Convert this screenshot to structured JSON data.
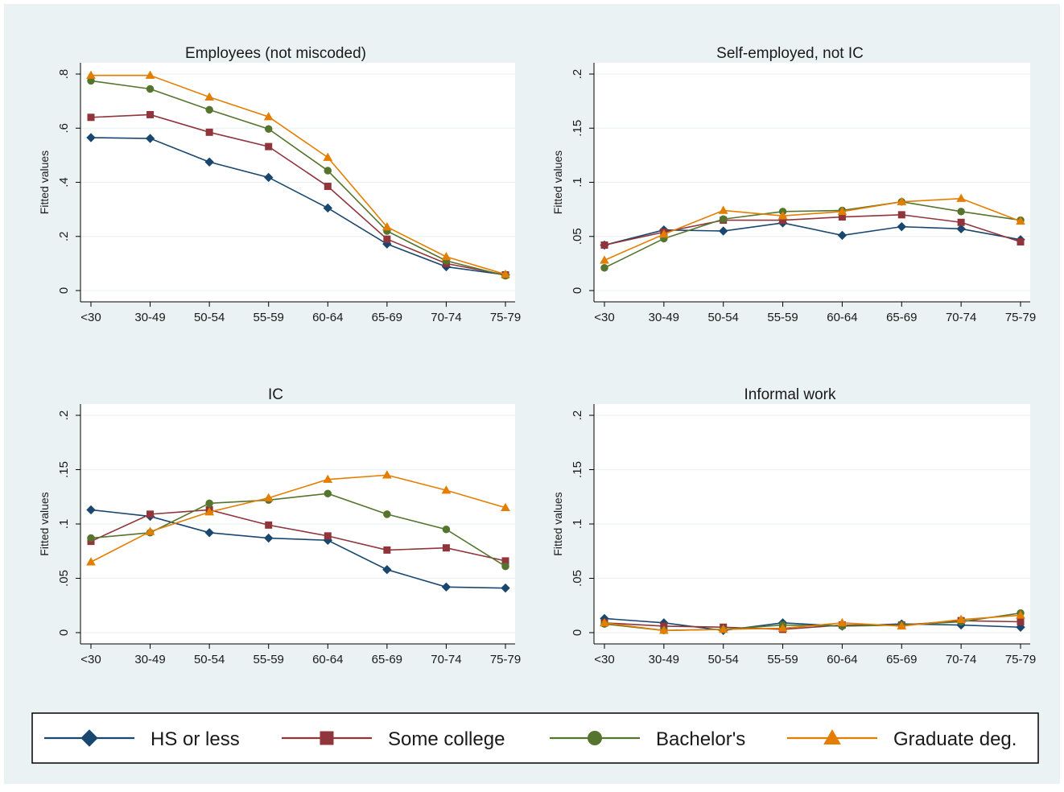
{
  "chart_data": [
    {
      "type": "line",
      "title": "Employees (not miscoded)",
      "ylabel": "Fitted values",
      "categories": [
        "<30",
        "30-49",
        "50-54",
        "55-59",
        "60-64",
        "65-69",
        "70-74",
        "75-79"
      ],
      "ylim": [
        0,
        0.8
      ],
      "yticks": [
        0,
        {
          "value": 0.2,
          "label": ".2"
        },
        {
          "value": 0.4,
          "label": ".4"
        },
        {
          "value": 0.6,
          "label": ".6"
        },
        {
          "value": 0.8,
          "label": ".8"
        }
      ],
      "grid": true,
      "series": [
        {
          "name": "HS or less",
          "color": "#1a476f",
          "marker": "diamond",
          "values": [
            0.565,
            0.562,
            0.475,
            0.418,
            0.305,
            0.172,
            0.088,
            0.058
          ]
        },
        {
          "name": "Some college",
          "color": "#90353b",
          "marker": "square",
          "values": [
            0.64,
            0.65,
            0.585,
            0.532,
            0.385,
            0.19,
            0.1,
            0.058
          ]
        },
        {
          "name": "Bachelor's",
          "color": "#55752f",
          "marker": "circle",
          "values": [
            0.775,
            0.745,
            0.668,
            0.597,
            0.443,
            0.22,
            0.11,
            0.055
          ]
        },
        {
          "name": "Graduate deg.",
          "color": "#e37e00",
          "marker": "triangle",
          "values": [
            0.795,
            0.795,
            0.715,
            0.642,
            0.492,
            0.235,
            0.125,
            0.06
          ]
        }
      ]
    },
    {
      "type": "line",
      "title": "Self-employed, not IC",
      "ylabel": "Fitted values",
      "categories": [
        "<30",
        "30-49",
        "50-54",
        "55-59",
        "60-64",
        "65-69",
        "70-74",
        "75-79"
      ],
      "ylim": [
        0,
        0.2
      ],
      "yticks": [
        0,
        {
          "value": 0.05,
          "label": ".05"
        },
        {
          "value": 0.1,
          "label": ".1"
        },
        {
          "value": 0.15,
          "label": ".15"
        },
        {
          "value": 0.2,
          "label": ".2"
        }
      ],
      "grid": true,
      "series": [
        {
          "color": "#1a476f",
          "marker": "diamond",
          "values": [
            0.042,
            0.056,
            0.055,
            0.0625,
            0.051,
            0.059,
            0.057,
            0.047
          ]
        },
        {
          "color": "#90353b",
          "marker": "square",
          "values": [
            0.042,
            0.054,
            0.065,
            0.065,
            0.068,
            0.07,
            0.063,
            0.045
          ]
        },
        {
          "color": "#55752f",
          "marker": "circle",
          "values": [
            0.021,
            0.048,
            0.066,
            0.073,
            0.074,
            0.082,
            0.073,
            0.065
          ]
        },
        {
          "color": "#e37e00",
          "marker": "triangle",
          "values": [
            0.028,
            0.052,
            0.074,
            0.069,
            0.073,
            0.082,
            0.085,
            0.064
          ]
        }
      ]
    },
    {
      "type": "line",
      "title": "IC",
      "ylabel": "Fitted values",
      "categories": [
        "<30",
        "30-49",
        "50-54",
        "55-59",
        "60-64",
        "65-69",
        "70-74",
        "75-79"
      ],
      "ylim": [
        0,
        0.2
      ],
      "yticks": [
        0,
        {
          "value": 0.05,
          "label": ".05"
        },
        {
          "value": 0.1,
          "label": ".1"
        },
        {
          "value": 0.15,
          "label": ".15"
        },
        {
          "value": 0.2,
          "label": ".2"
        }
      ],
      "grid": true,
      "series": [
        {
          "color": "#1a476f",
          "marker": "diamond",
          "values": [
            0.113,
            0.107,
            0.092,
            0.087,
            0.085,
            0.058,
            0.042,
            0.041
          ]
        },
        {
          "color": "#90353b",
          "marker": "square",
          "values": [
            0.084,
            0.109,
            0.113,
            0.099,
            0.089,
            0.076,
            0.078,
            0.066
          ]
        },
        {
          "color": "#55752f",
          "marker": "circle",
          "values": [
            0.087,
            0.092,
            0.119,
            0.122,
            0.128,
            0.109,
            0.095,
            0.061
          ]
        },
        {
          "color": "#e37e00",
          "marker": "triangle",
          "values": [
            0.065,
            0.093,
            0.111,
            0.124,
            0.141,
            0.145,
            0.131,
            0.115
          ]
        }
      ]
    },
    {
      "type": "line",
      "title": "Informal work",
      "ylabel": "Fitted values",
      "categories": [
        "<30",
        "30-49",
        "50-54",
        "55-59",
        "60-64",
        "65-69",
        "70-74",
        "75-79"
      ],
      "ylim": [
        0,
        0.2
      ],
      "yticks": [
        0,
        {
          "value": 0.05,
          "label": ".05"
        },
        {
          "value": 0.1,
          "label": ".1"
        },
        {
          "value": 0.15,
          "label": ".15"
        },
        {
          "value": 0.2,
          "label": ".2"
        }
      ],
      "grid": true,
      "series": [
        {
          "color": "#1a476f",
          "marker": "diamond",
          "values": [
            0.013,
            0.009,
            0.002,
            0.009,
            0.006,
            0.008,
            0.007,
            0.005
          ]
        },
        {
          "color": "#90353b",
          "marker": "square",
          "values": [
            0.009,
            0.006,
            0.005,
            0.003,
            0.007,
            0.007,
            0.011,
            0.01
          ]
        },
        {
          "color": "#55752f",
          "marker": "circle",
          "values": [
            0.008,
            0.002,
            0.003,
            0.007,
            0.006,
            0.007,
            0.01,
            0.018
          ]
        },
        {
          "color": "#e37e00",
          "marker": "triangle",
          "values": [
            0.009,
            0.002,
            0.003,
            0.004,
            0.009,
            0.006,
            0.012,
            0.016
          ]
        }
      ]
    }
  ]
}
